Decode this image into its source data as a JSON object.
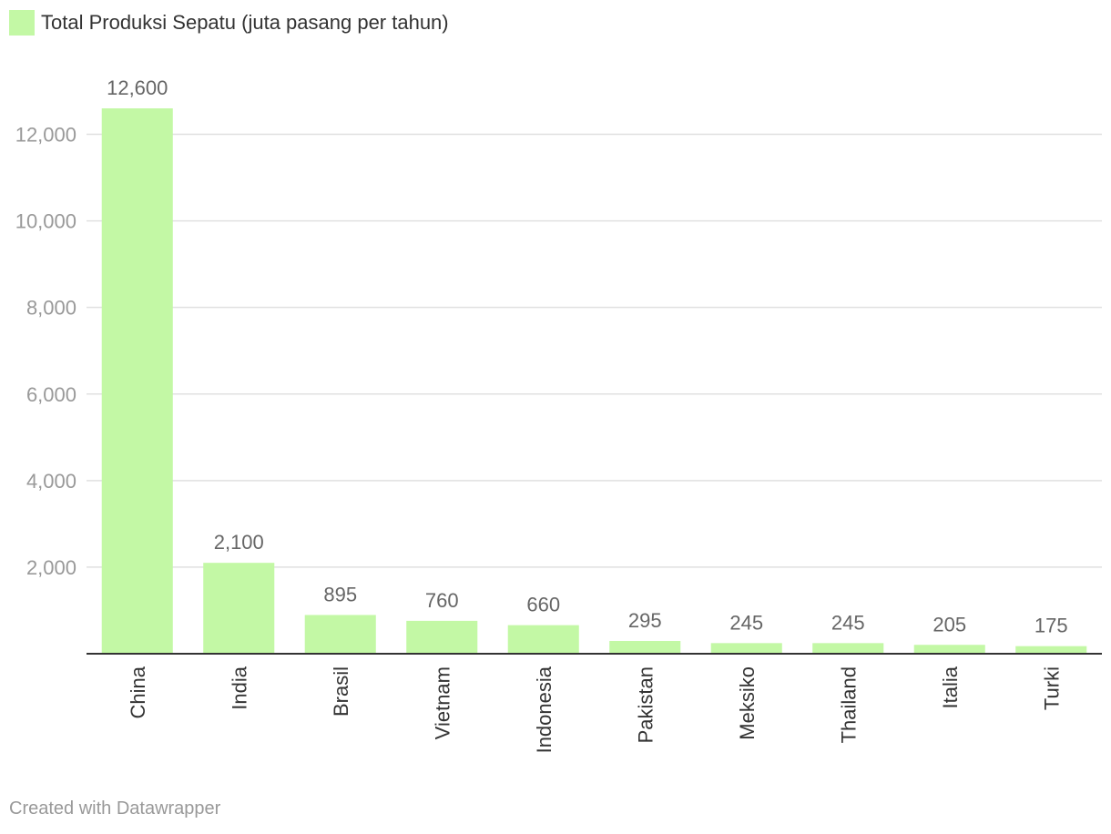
{
  "chart_data": {
    "type": "bar",
    "title": "",
    "xlabel": "",
    "ylabel": "",
    "categories": [
      "China",
      "India",
      "Brasil",
      "Vietnam",
      "Indonesia",
      "Pakistan",
      "Meksiko",
      "Thailand",
      "Italia",
      "Turki"
    ],
    "series": [
      {
        "name": "Total Produksi Sepatu (juta pasang per tahun)",
        "values": [
          12600,
          2100,
          895,
          760,
          660,
          295,
          245,
          245,
          205,
          175
        ],
        "value_labels": [
          "12,600",
          "2,100",
          "895",
          "760",
          "660",
          "295",
          "245",
          "245",
          "205",
          "175"
        ],
        "color": "#c3f8a5"
      }
    ],
    "ylim": [
      0,
      12600
    ],
    "yticks": [
      2000,
      4000,
      6000,
      8000,
      10000,
      12000
    ],
    "ytick_labels": [
      "2,000",
      "4,000",
      "6,000",
      "8,000",
      "10,000",
      "12,000"
    ],
    "grid": true,
    "legend_position": "top-left"
  },
  "credit": "Created with Datawrapper",
  "colors": {
    "bar": "#c3f8a5",
    "grid": "#e0e0e0",
    "axis": "#333333"
  }
}
